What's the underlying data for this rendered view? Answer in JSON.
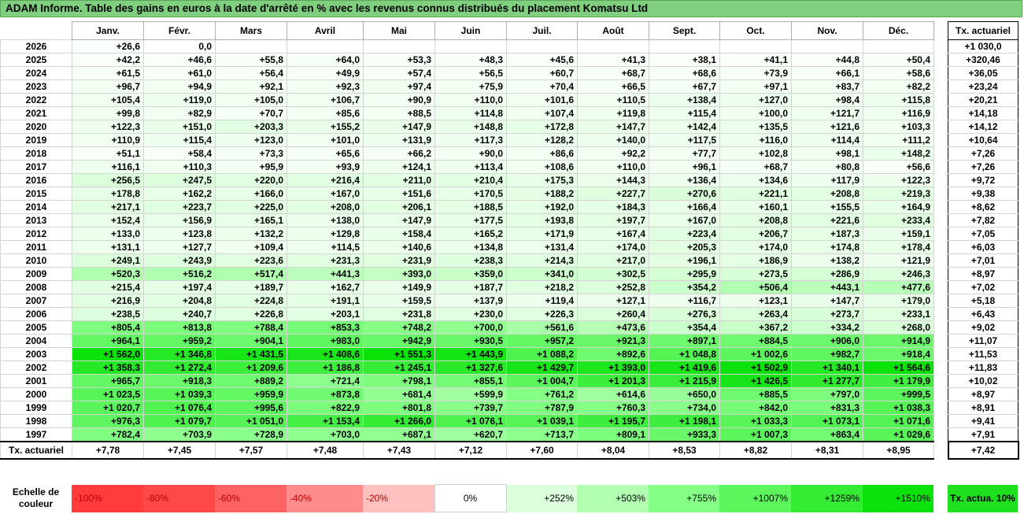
{
  "title": "ADAM Informe. Table des gains en euros à la date d'arrêté en % avec les revenus connus distribués du placement Komatsu Ltd",
  "chart_data": {
    "type": "heatmap",
    "months": [
      "Janv.",
      "Févr.",
      "Mars",
      "Avril",
      "Mai",
      "Juin",
      "Juil.",
      "Août",
      "Sept.",
      "Oct.",
      "Nov.",
      "Déc."
    ],
    "tx_header": "Tx. actuariel",
    "rows": [
      {
        "year": "2026",
        "values": [
          "+26,6",
          "0,0",
          "",
          "",
          "",
          "",
          "",
          "",
          "",
          "",
          "",
          ""
        ],
        "tx": "+1 030,0"
      },
      {
        "year": "2025",
        "values": [
          "+42,2",
          "+46,6",
          "+55,8",
          "+64,0",
          "+53,3",
          "+48,3",
          "+45,6",
          "+41,3",
          "+38,1",
          "+41,1",
          "+44,8",
          "+50,4"
        ],
        "tx": "+320,46"
      },
      {
        "year": "2024",
        "values": [
          "+61,5",
          "+61,0",
          "+56,4",
          "+49,9",
          "+57,4",
          "+56,5",
          "+60,7",
          "+68,7",
          "+68,6",
          "+73,9",
          "+66,1",
          "+58,6"
        ],
        "tx": "+36,05"
      },
      {
        "year": "2023",
        "values": [
          "+96,7",
          "+94,9",
          "+92,1",
          "+92,3",
          "+97,4",
          "+75,9",
          "+70,4",
          "+66,5",
          "+67,7",
          "+97,1",
          "+83,7",
          "+82,2"
        ],
        "tx": "+23,24"
      },
      {
        "year": "2022",
        "values": [
          "+105,4",
          "+119,0",
          "+105,0",
          "+106,7",
          "+90,9",
          "+110,0",
          "+101,6",
          "+110,5",
          "+138,4",
          "+127,0",
          "+98,4",
          "+115,8"
        ],
        "tx": "+20,21"
      },
      {
        "year": "2021",
        "values": [
          "+99,8",
          "+82,9",
          "+70,7",
          "+85,6",
          "+88,5",
          "+114,8",
          "+107,4",
          "+119,8",
          "+115,4",
          "+100,0",
          "+121,7",
          "+116,9"
        ],
        "tx": "+14,18"
      },
      {
        "year": "2020",
        "values": [
          "+122,3",
          "+151,0",
          "+203,3",
          "+155,2",
          "+147,9",
          "+148,8",
          "+172,8",
          "+147,7",
          "+142,4",
          "+135,5",
          "+121,6",
          "+103,3"
        ],
        "tx": "+14,12"
      },
      {
        "year": "2019",
        "values": [
          "+110,9",
          "+115,4",
          "+123,0",
          "+101,0",
          "+131,9",
          "+117,3",
          "+128,2",
          "+140,0",
          "+117,5",
          "+116,0",
          "+114,4",
          "+111,2"
        ],
        "tx": "+10,64"
      },
      {
        "year": "2018",
        "values": [
          "+51,1",
          "+58,4",
          "+73,3",
          "+65,6",
          "+66,2",
          "+90,0",
          "+86,6",
          "+92,2",
          "+77,7",
          "+102,8",
          "+98,1",
          "+148,2"
        ],
        "tx": "+7,26"
      },
      {
        "year": "2017",
        "values": [
          "+116,1",
          "+110,3",
          "+95,9",
          "+93,9",
          "+124,1",
          "+113,4",
          "+108,6",
          "+110,0",
          "+96,1",
          "+68,7",
          "+80,8",
          "+56,6"
        ],
        "tx": "+7,26"
      },
      {
        "year": "2016",
        "values": [
          "+256,5",
          "+247,5",
          "+220,0",
          "+216,4",
          "+211,0",
          "+210,4",
          "+175,3",
          "+144,3",
          "+136,4",
          "+134,6",
          "+117,9",
          "+122,3"
        ],
        "tx": "+9,72"
      },
      {
        "year": "2015",
        "values": [
          "+178,8",
          "+162,2",
          "+166,0",
          "+167,0",
          "+151,6",
          "+170,5",
          "+188,2",
          "+227,7",
          "+270,6",
          "+221,1",
          "+208,8",
          "+219,3"
        ],
        "tx": "+9,38"
      },
      {
        "year": "2014",
        "values": [
          "+217,1",
          "+223,7",
          "+225,0",
          "+208,0",
          "+206,1",
          "+188,5",
          "+192,0",
          "+184,3",
          "+166,4",
          "+160,1",
          "+155,5",
          "+164,9"
        ],
        "tx": "+8,62"
      },
      {
        "year": "2013",
        "values": [
          "+152,4",
          "+156,9",
          "+165,1",
          "+138,0",
          "+147,9",
          "+177,5",
          "+193,8",
          "+197,7",
          "+167,0",
          "+208,8",
          "+221,6",
          "+233,4"
        ],
        "tx": "+7,82"
      },
      {
        "year": "2012",
        "values": [
          "+133,0",
          "+123,8",
          "+132,2",
          "+129,8",
          "+158,4",
          "+165,2",
          "+171,9",
          "+167,4",
          "+223,4",
          "+206,7",
          "+187,3",
          "+159,1"
        ],
        "tx": "+7,05"
      },
      {
        "year": "2011",
        "values": [
          "+131,1",
          "+127,7",
          "+109,4",
          "+114,5",
          "+140,6",
          "+134,8",
          "+131,4",
          "+174,0",
          "+205,3",
          "+174,0",
          "+174,8",
          "+178,4"
        ],
        "tx": "+6,03"
      },
      {
        "year": "2010",
        "values": [
          "+249,1",
          "+243,9",
          "+223,6",
          "+231,3",
          "+231,9",
          "+238,3",
          "+214,3",
          "+217,0",
          "+196,1",
          "+186,9",
          "+138,2",
          "+121,9"
        ],
        "tx": "+7,01"
      },
      {
        "year": "2009",
        "values": [
          "+520,3",
          "+516,2",
          "+517,4",
          "+441,3",
          "+393,0",
          "+359,0",
          "+341,0",
          "+302,5",
          "+295,9",
          "+273,5",
          "+286,9",
          "+246,3"
        ],
        "tx": "+8,97"
      },
      {
        "year": "2008",
        "values": [
          "+215,4",
          "+197,4",
          "+189,7",
          "+162,7",
          "+149,9",
          "+187,7",
          "+218,2",
          "+252,8",
          "+354,2",
          "+506,4",
          "+443,1",
          "+477,6"
        ],
        "tx": "+7,02"
      },
      {
        "year": "2007",
        "values": [
          "+216,9",
          "+204,8",
          "+224,8",
          "+191,1",
          "+159,5",
          "+137,9",
          "+119,4",
          "+127,1",
          "+116,7",
          "+123,1",
          "+147,7",
          "+179,0"
        ],
        "tx": "+5,18"
      },
      {
        "year": "2006",
        "values": [
          "+238,5",
          "+240,7",
          "+226,8",
          "+203,1",
          "+231,8",
          "+230,0",
          "+226,3",
          "+260,4",
          "+276,3",
          "+263,4",
          "+273,7",
          "+233,1"
        ],
        "tx": "+6,43"
      },
      {
        "year": "2005",
        "values": [
          "+805,4",
          "+813,8",
          "+788,4",
          "+853,3",
          "+748,2",
          "+700,0",
          "+561,6",
          "+473,6",
          "+354,4",
          "+367,2",
          "+334,2",
          "+268,0"
        ],
        "tx": "+9,02"
      },
      {
        "year": "2004",
        "values": [
          "+964,1",
          "+959,2",
          "+904,1",
          "+983,0",
          "+942,9",
          "+930,5",
          "+957,2",
          "+921,3",
          "+897,1",
          "+884,5",
          "+906,0",
          "+914,9"
        ],
        "tx": "+11,07"
      },
      {
        "year": "2003",
        "values": [
          "+1 562,0",
          "+1 346,8",
          "+1 431,5",
          "+1 408,6",
          "+1 551,3",
          "+1 443,9",
          "+1 088,2",
          "+892,6",
          "+1 048,8",
          "+1 002,6",
          "+982,7",
          "+918,4"
        ],
        "tx": "+11,53"
      },
      {
        "year": "2002",
        "values": [
          "+1 358,3",
          "+1 272,4",
          "+1 209,6",
          "+1 186,8",
          "+1 245,1",
          "+1 327,6",
          "+1 429,7",
          "+1 393,0",
          "+1 419,6",
          "+1 502,9",
          "+1 340,1",
          "+1 564,6"
        ],
        "tx": "+11,83"
      },
      {
        "year": "2001",
        "values": [
          "+965,7",
          "+918,3",
          "+889,2",
          "+721,4",
          "+798,1",
          "+855,1",
          "+1 004,7",
          "+1 201,3",
          "+1 215,9",
          "+1 426,5",
          "+1 277,7",
          "+1 179,9"
        ],
        "tx": "+10,02"
      },
      {
        "year": "2000",
        "values": [
          "+1 023,5",
          "+1 039,3",
          "+959,9",
          "+873,8",
          "+681,4",
          "+599,9",
          "+761,2",
          "+614,6",
          "+650,0",
          "+885,5",
          "+797,0",
          "+999,5"
        ],
        "tx": "+8,97"
      },
      {
        "year": "1999",
        "values": [
          "+1 020,7",
          "+1 076,4",
          "+995,6",
          "+822,9",
          "+801,8",
          "+739,7",
          "+787,9",
          "+760,3",
          "+734,0",
          "+842,0",
          "+831,3",
          "+1 038,3"
        ],
        "tx": "+8,91"
      },
      {
        "year": "1998",
        "values": [
          "+976,3",
          "+1 079,7",
          "+1 051,0",
          "+1 153,4",
          "+1 266,0",
          "+1 076,1",
          "+1 039,1",
          "+1 195,7",
          "+1 198,1",
          "+1 033,3",
          "+1 073,1",
          "+1 071,6"
        ],
        "tx": "+9,41"
      },
      {
        "year": "1997",
        "values": [
          "+782,4",
          "+703,9",
          "+728,9",
          "+703,0",
          "+687,1",
          "+620,7",
          "+713,7",
          "+809,1",
          "+933,3",
          "+1 007,3",
          "+863,4",
          "+1 029,6"
        ],
        "tx": "+7,91"
      }
    ],
    "footer": {
      "label": "Tx. actuariel",
      "values": [
        "+7,78",
        "+7,45",
        "+7,57",
        "+7,48",
        "+7,43",
        "+7,12",
        "+7,60",
        "+8,04",
        "+8,53",
        "+8,82",
        "+8,31",
        "+8,95"
      ],
      "tx": "+7,42"
    },
    "color_scale": {
      "label": "Echelle de couleur",
      "stops": [
        {
          "label": "-100%",
          "color": "#ff3b3b"
        },
        {
          "label": "-80%",
          "color": "#ff4848"
        },
        {
          "label": "-60%",
          "color": "#ff6262"
        },
        {
          "label": "-40%",
          "color": "#ff8c8c"
        },
        {
          "label": "-20%",
          "color": "#ffc0c0"
        },
        {
          "label": "0%",
          "color": "#ffffff"
        },
        {
          "label": "+252%",
          "color": "#dcffdc"
        },
        {
          "label": "+503%",
          "color": "#b2ffb2"
        },
        {
          "label": "+755%",
          "color": "#86ff86"
        },
        {
          "label": "+1007%",
          "color": "#5cf55c"
        },
        {
          "label": "+1259%",
          "color": "#34ec34"
        },
        {
          "label": "+1510%",
          "color": "#0ae20a"
        }
      ],
      "tx_legend": "Tx. actua. 10%",
      "tx_legend_color": "#1fe01f"
    }
  }
}
